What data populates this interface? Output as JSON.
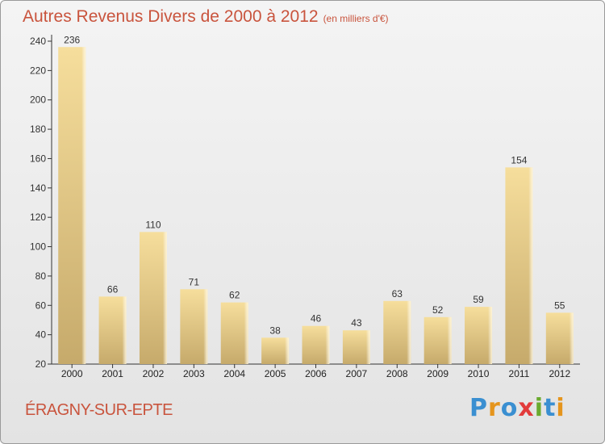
{
  "header": {
    "title": "Autres Revenus Divers de 2000 à 2012",
    "unit": "(en milliers d'€)"
  },
  "footer": {
    "commune": "ÉRAGNY-SUR-EPTE",
    "logo_letters": [
      "P",
      "r",
      "o",
      "x",
      "i",
      "t",
      "i"
    ]
  },
  "chart_data": {
    "type": "bar",
    "title": "Autres Revenus Divers de 2000 à 2012",
    "subtitle": "(en milliers d'€)",
    "xlabel": "",
    "ylabel": "",
    "categories": [
      "2000",
      "2001",
      "2002",
      "2003",
      "2004",
      "2005",
      "2006",
      "2007",
      "2008",
      "2009",
      "2010",
      "2011",
      "2012"
    ],
    "values": [
      236,
      66,
      110,
      71,
      62,
      38,
      46,
      43,
      63,
      52,
      59,
      154,
      55
    ],
    "ylim": [
      20,
      240
    ],
    "yticks": [
      20,
      40,
      60,
      80,
      100,
      120,
      140,
      160,
      180,
      200,
      220,
      240
    ],
    "grid": false,
    "legend": "none",
    "colors": {
      "bar_light": "#f5dc99",
      "bar_dark": "#c8ac6c",
      "axis": "#333333",
      "title": "#c9543d"
    }
  }
}
